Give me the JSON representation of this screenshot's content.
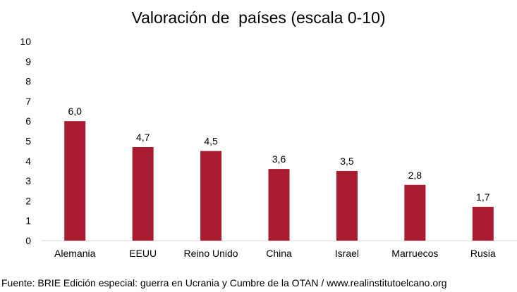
{
  "chart_data": {
    "type": "bar",
    "title": "Valoración de  países (escala 0-10)",
    "categories": [
      "Alemania",
      "EEUU",
      "Reino Unido",
      "China",
      "Israel",
      "Marruecos",
      "Rusia"
    ],
    "values": [
      6.0,
      4.7,
      4.5,
      3.6,
      3.5,
      2.8,
      1.7
    ],
    "data_labels": [
      "6,0",
      "4,7",
      "4,5",
      "3,6",
      "3,5",
      "2,8",
      "1,7"
    ],
    "y_ticks": [
      0,
      1,
      2,
      3,
      4,
      5,
      6,
      7,
      8,
      9,
      10
    ],
    "ylim": [
      0,
      10
    ],
    "xlabel": "",
    "ylabel": "",
    "grid": false,
    "legend": "none",
    "bar_color": "#a91b30"
  },
  "source": "Fuente: BRIE Edición especial: guerra en Ucrania y Cumbre de la OTAN / www.realinstitutoelcano.org"
}
